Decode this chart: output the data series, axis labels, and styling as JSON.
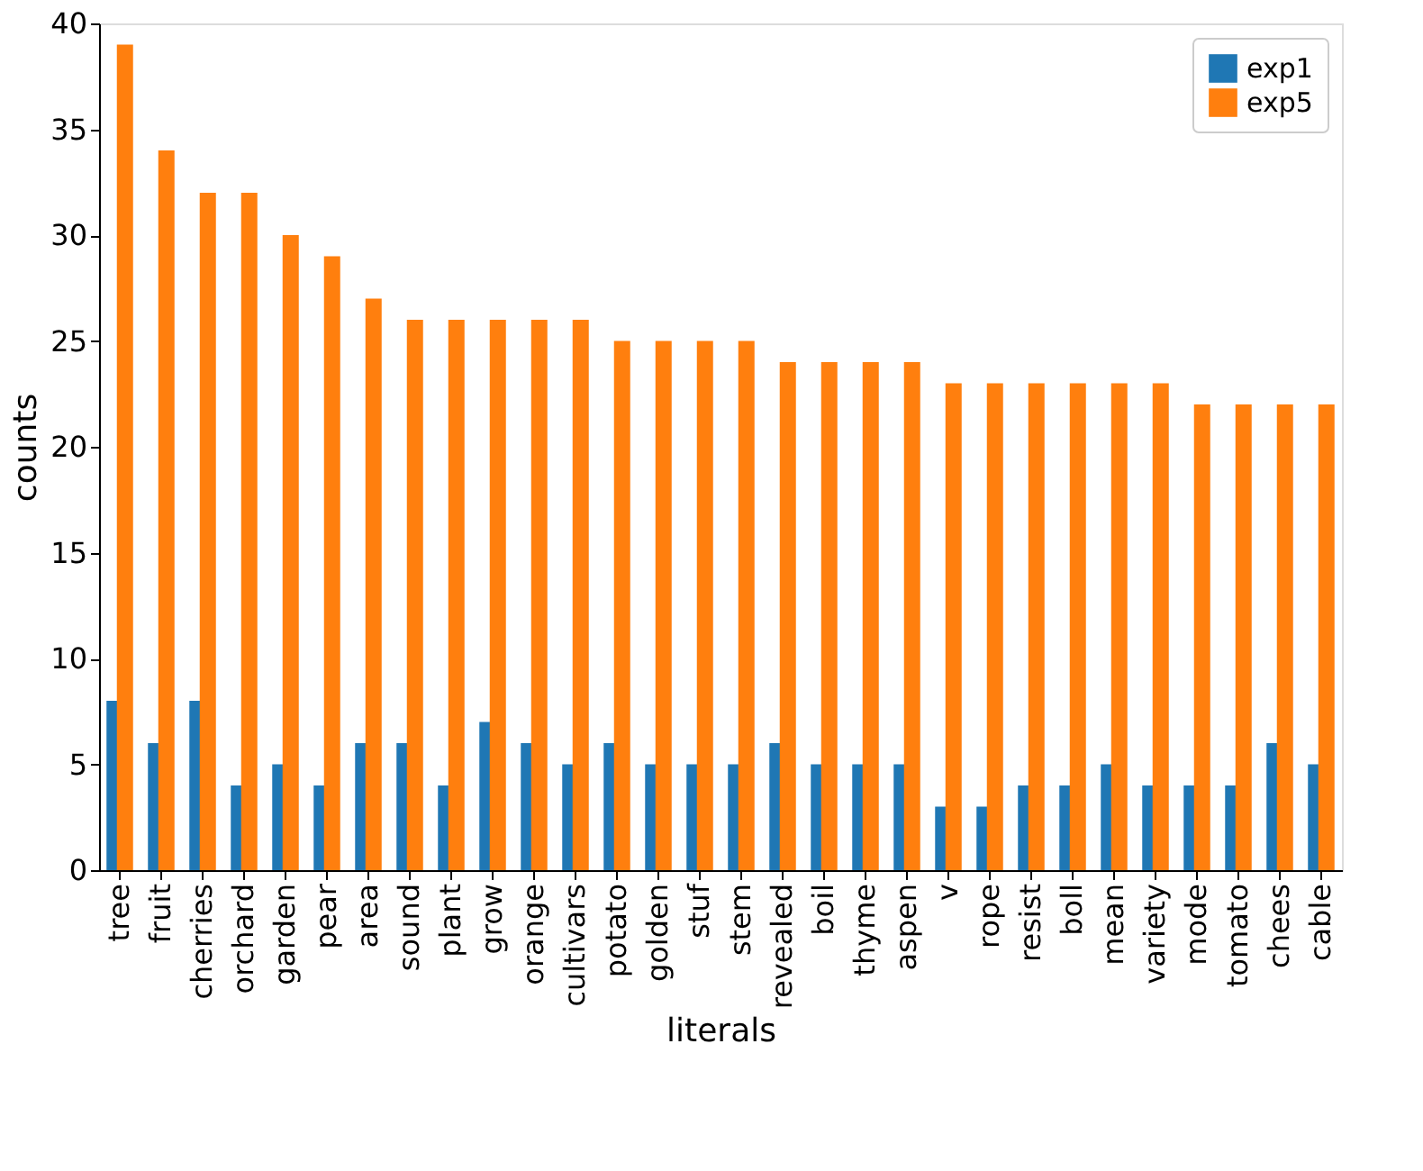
{
  "chart_data": {
    "type": "bar",
    "xlabel": "literals",
    "ylabel": "counts",
    "categories": [
      "tree",
      "fruit",
      "cherries",
      "orchard",
      "garden",
      "pear",
      "area",
      "sound",
      "plant",
      "grow",
      "orange",
      "cultivars",
      "potato",
      "golden",
      "stuf",
      "stem",
      "revealed",
      "boil",
      "thyme",
      "aspen",
      "v",
      "rope",
      "resist",
      "boll",
      "mean",
      "variety",
      "mode",
      "tomato",
      "chees",
      "cable"
    ],
    "series": [
      {
        "name": "exp1",
        "color": "#1f77b4",
        "values": [
          8,
          6,
          8,
          4,
          5,
          4,
          6,
          6,
          4,
          7,
          6,
          5,
          6,
          5,
          5,
          5,
          6,
          5,
          5,
          5,
          3,
          3,
          4,
          4,
          5,
          4,
          4,
          4,
          6,
          5
        ]
      },
      {
        "name": "exp5",
        "color": "#ff7f0e",
        "values": [
          39,
          34,
          32,
          32,
          30,
          29,
          27,
          26,
          26,
          26,
          26,
          26,
          25,
          25,
          25,
          25,
          24,
          24,
          24,
          24,
          23,
          23,
          23,
          23,
          23,
          23,
          22,
          22,
          22,
          22
        ]
      }
    ],
    "ylim": [
      0,
      40
    ],
    "yticks": [
      0,
      5,
      10,
      15,
      20,
      25,
      30,
      35,
      40
    ],
    "grid": false,
    "legend": "top right"
  }
}
